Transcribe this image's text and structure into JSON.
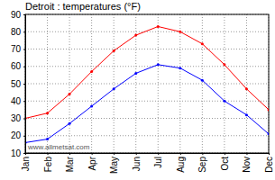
{
  "chart_data": {
    "type": "line",
    "title": "Detroit : temperatures (°F)",
    "categories": [
      "Jan",
      "Feb",
      "Mar",
      "Apr",
      "May",
      "Jun",
      "Jul",
      "Aug",
      "Sep",
      "Oct",
      "Nov",
      "Dec"
    ],
    "series": [
      {
        "color": "#ff0000",
        "marker": "circle",
        "line_style": "solid",
        "values": [
          30,
          33,
          44,
          57,
          69,
          78,
          83,
          80,
          73,
          61,
          47,
          35
        ]
      },
      {
        "color": "#0000ff",
        "marker": "circle",
        "line_style": "solid",
        "values": [
          16,
          18,
          27,
          37,
          47,
          56,
          61,
          59,
          52,
          40,
          32,
          21
        ]
      }
    ],
    "ylim": [
      10,
      90
    ],
    "yticks": [
      10,
      20,
      30,
      40,
      50,
      60,
      70,
      80,
      90
    ],
    "grid": true,
    "annotations": [
      "www.allmetsat.com"
    ]
  }
}
